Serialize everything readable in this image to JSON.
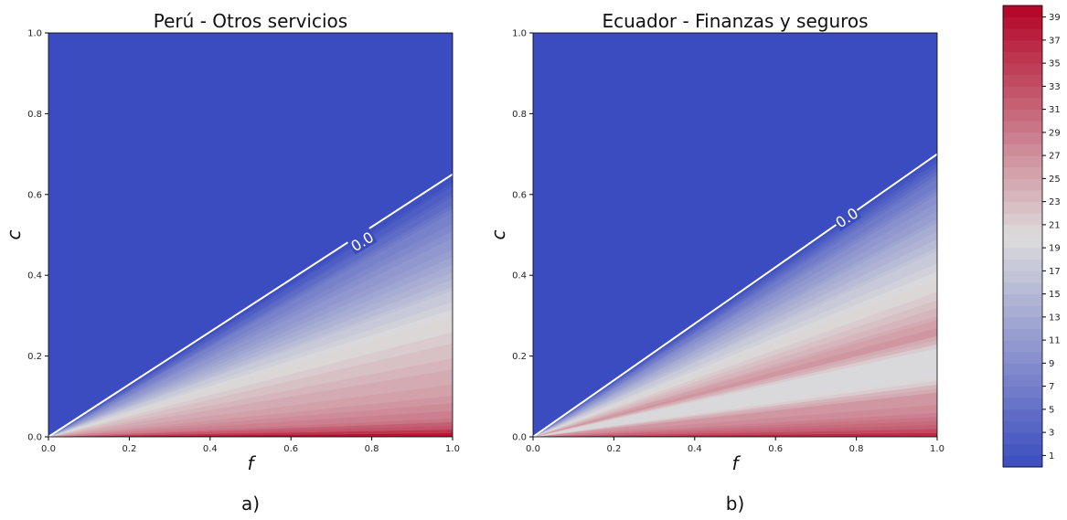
{
  "chart_data": [
    {
      "type": "heatmap",
      "title": "Perú - Otros servicios",
      "xlabel": "f",
      "ylabel": "c",
      "panel_label": "a)",
      "xlim": [
        0.0,
        1.0
      ],
      "ylim": [
        0.0,
        1.0
      ],
      "xticks": [
        "0.0",
        "0.2",
        "0.4",
        "0.6",
        "0.8",
        "1.0"
      ],
      "yticks": [
        "0.0",
        "0.2",
        "0.4",
        "0.6",
        "0.8",
        "1.0"
      ],
      "zero_contour": {
        "label": "0.0",
        "c_at_f1": 0.65
      },
      "gradient_profile": [
        [
          0.0,
          40
        ],
        [
          0.03,
          33
        ],
        [
          0.07,
          29
        ],
        [
          0.15,
          26
        ],
        [
          0.25,
          24
        ],
        [
          0.35,
          22
        ],
        [
          0.45,
          20
        ],
        [
          0.55,
          17
        ],
        [
          0.65,
          13
        ],
        [
          0.75,
          10
        ],
        [
          0.85,
          7
        ],
        [
          0.93,
          3
        ],
        [
          1.0,
          0
        ]
      ]
    },
    {
      "type": "heatmap",
      "title": "Ecuador - Finanzas y seguros",
      "xlabel": "f",
      "ylabel": "c",
      "panel_label": "b)",
      "xlim": [
        0.0,
        1.0
      ],
      "ylim": [
        0.0,
        1.0
      ],
      "xticks": [
        "0.0",
        "0.2",
        "0.4",
        "0.6",
        "0.8",
        "1.0"
      ],
      "yticks": [
        "0.0",
        "0.2",
        "0.4",
        "0.6",
        "0.8",
        "1.0"
      ],
      "zero_contour": {
        "label": "0.0",
        "c_at_f1": 0.7
      },
      "gradient_profile": [
        [
          0.0,
          38
        ],
        [
          0.03,
          32
        ],
        [
          0.08,
          28
        ],
        [
          0.15,
          26
        ],
        [
          0.22,
          19
        ],
        [
          0.3,
          19
        ],
        [
          0.37,
          27
        ],
        [
          0.45,
          23
        ],
        [
          0.55,
          20
        ],
        [
          0.65,
          17
        ],
        [
          0.75,
          13
        ],
        [
          0.85,
          9
        ],
        [
          0.93,
          5
        ],
        [
          1.0,
          0
        ]
      ]
    }
  ],
  "colorbar": {
    "ticks": [
      "1",
      "3",
      "5",
      "7",
      "9",
      "11",
      "13",
      "15",
      "17",
      "19",
      "21",
      "23",
      "25",
      "27",
      "29",
      "31",
      "33",
      "35",
      "37",
      "39"
    ],
    "vmin": 0,
    "vmax": 40,
    "levels": 40,
    "colormap": "coolwarm",
    "low_color": "#3b4cc0",
    "mid_color": "#dddcdc",
    "high_color": "#b40426"
  }
}
